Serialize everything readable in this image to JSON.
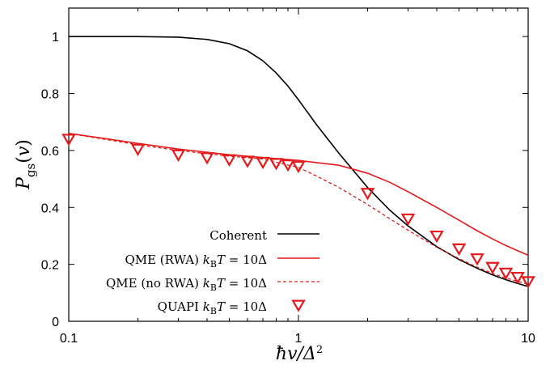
{
  "chart_data": {
    "type": "line",
    "xlabel": "ħv/Δ²",
    "ylabel": "P_gs(v)",
    "x_scale": "log",
    "xlim": [
      0.1,
      10
    ],
    "ylim": [
      0,
      1.1
    ],
    "xticks": [
      0.1,
      1,
      10
    ],
    "xtick_labels": [
      "0.1",
      "1",
      "10"
    ],
    "yticks": [
      0,
      0.2,
      0.4,
      0.6,
      0.8,
      1
    ],
    "ytick_labels": [
      "0",
      "0.2",
      "0.4",
      "0.6",
      "0.8",
      "1"
    ],
    "legend_position": "bottom-center",
    "series": [
      {
        "name": "Coherent",
        "style": "solid",
        "color": "#000000",
        "points": [
          [
            0.1,
            1.0
          ],
          [
            0.2,
            1.0
          ],
          [
            0.3,
            0.998
          ],
          [
            0.4,
            0.99
          ],
          [
            0.5,
            0.975
          ],
          [
            0.6,
            0.95
          ],
          [
            0.7,
            0.915
          ],
          [
            0.8,
            0.872
          ],
          [
            0.9,
            0.826
          ],
          [
            1.0,
            0.778
          ],
          [
            1.2,
            0.69
          ],
          [
            1.5,
            0.59
          ],
          [
            2,
            0.47
          ],
          [
            2.5,
            0.39
          ],
          [
            3,
            0.335
          ],
          [
            4,
            0.262
          ],
          [
            5,
            0.217
          ],
          [
            6,
            0.186
          ],
          [
            7,
            0.163
          ],
          [
            8,
            0.146
          ],
          [
            9,
            0.133
          ],
          [
            10,
            0.122
          ]
        ]
      },
      {
        "name": "QME (RWA) k_B T = 10Δ",
        "style": "solid",
        "color": "#e41a1c",
        "points": [
          [
            0.1,
            0.66
          ],
          [
            0.2,
            0.625
          ],
          [
            0.3,
            0.605
          ],
          [
            0.5,
            0.585
          ],
          [
            0.7,
            0.575
          ],
          [
            1.0,
            0.565
          ],
          [
            1.5,
            0.548
          ],
          [
            2,
            0.52
          ],
          [
            2.5,
            0.488
          ],
          [
            3,
            0.455
          ],
          [
            4,
            0.4
          ],
          [
            5,
            0.355
          ],
          [
            6,
            0.318
          ],
          [
            7,
            0.289
          ],
          [
            8,
            0.266
          ],
          [
            9,
            0.248
          ],
          [
            10,
            0.232
          ]
        ]
      },
      {
        "name": "QME (no RWA) k_B T = 10Δ",
        "style": "dashed",
        "color": "#e41a1c",
        "points": [
          [
            0.1,
            0.66
          ],
          [
            0.2,
            0.62
          ],
          [
            0.3,
            0.6
          ],
          [
            0.5,
            0.58
          ],
          [
            0.7,
            0.57
          ],
          [
            1.0,
            0.54
          ],
          [
            1.2,
            0.51
          ],
          [
            1.5,
            0.47
          ],
          [
            2,
            0.41
          ],
          [
            2.5,
            0.36
          ],
          [
            3,
            0.32
          ],
          [
            4,
            0.26
          ],
          [
            5,
            0.22
          ],
          [
            6,
            0.19
          ],
          [
            7,
            0.168
          ],
          [
            8,
            0.152
          ],
          [
            9,
            0.14
          ],
          [
            10,
            0.13
          ]
        ]
      },
      {
        "name": "QUAPI k_B T = 10Δ",
        "style": "triangle-down-markers",
        "color": "#e41a1c",
        "points": [
          [
            0.1,
            0.64
          ],
          [
            0.2,
            0.605
          ],
          [
            0.3,
            0.585
          ],
          [
            0.4,
            0.575
          ],
          [
            0.5,
            0.568
          ],
          [
            0.6,
            0.563
          ],
          [
            0.7,
            0.559
          ],
          [
            0.8,
            0.555
          ],
          [
            0.9,
            0.55
          ],
          [
            1.0,
            0.545
          ],
          [
            2,
            0.45
          ],
          [
            3,
            0.36
          ],
          [
            4,
            0.3
          ],
          [
            5,
            0.255
          ],
          [
            6,
            0.22
          ],
          [
            7,
            0.19
          ],
          [
            8,
            0.17
          ],
          [
            9,
            0.155
          ],
          [
            10,
            0.14
          ]
        ]
      }
    ]
  }
}
